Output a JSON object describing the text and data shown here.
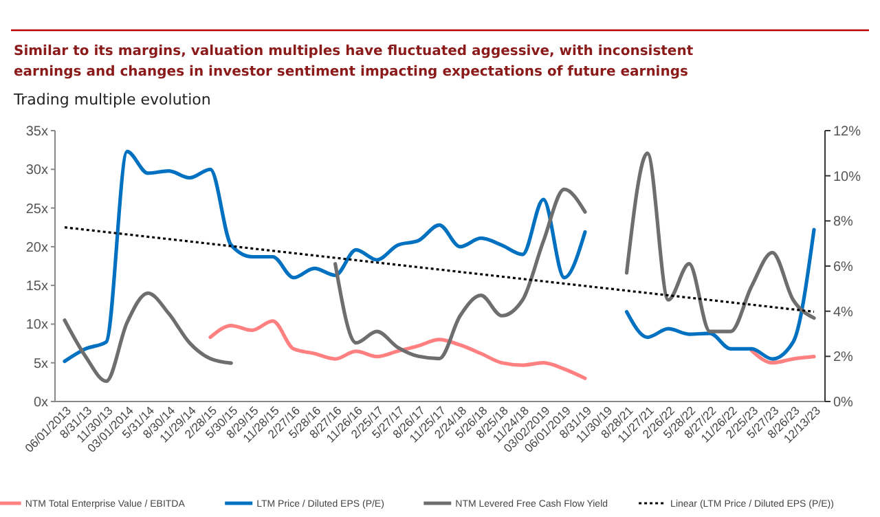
{
  "chart_data": {
    "type": "line",
    "title": "Similar to its margins, valuation multiples have fluctuated aggessive, with inconsistent earnings and changes in investor sentiment impacting expectations of future earnings",
    "subtitle": "Trading multiple evolution",
    "categories": [
      "06/01/2013",
      "8/31/13",
      "11/30/13",
      "03/01/2014",
      "5/31/14",
      "8/30/14",
      "11/29/14",
      "2/28/15",
      "5/30/15",
      "8/29/15",
      "11/28/15",
      "2/27/16",
      "5/28/16",
      "8/27/16",
      "11/26/16",
      "2/25/17",
      "5/27/17",
      "8/26/17",
      "11/25/17",
      "2/24/18",
      "5/26/18",
      "8/25/18",
      "11/24/18",
      "03/02/2019",
      "06/01/2019",
      "8/31/19",
      "11/30/19",
      "8/28/21",
      "11/27/21",
      "2/26/22",
      "5/28/22",
      "8/27/22",
      "11/26/22",
      "2/25/23",
      "5/27/23",
      "8/26/23",
      "12/13/23"
    ],
    "series": [
      {
        "name": "NTM Total Enterprise Value / EBITDA",
        "color": "#ff8080",
        "values": [
          null,
          null,
          null,
          null,
          null,
          null,
          null,
          8.3,
          9.8,
          9.2,
          10.4,
          6.8,
          6.2,
          5.5,
          6.5,
          5.8,
          6.5,
          7.2,
          8.0,
          7.3,
          6.2,
          5.0,
          4.7,
          5.0,
          4.2,
          3.0,
          null,
          null,
          null,
          null,
          null,
          null,
          null,
          6.6,
          5.0,
          5.5,
          5.8
        ]
      },
      {
        "name": "LTM Price / Diluted EPS (P/E)",
        "color": "#0070c0",
        "values": [
          5.2,
          6.8,
          7.7,
          32.3,
          29.5,
          29.8,
          28.9,
          30,
          20.2,
          18.7,
          18.7,
          16,
          17.2,
          16.3,
          19.6,
          18.3,
          20.2,
          20.8,
          22.8,
          20,
          21.1,
          20.2,
          19,
          26.1,
          16,
          21.9,
          null,
          11.6,
          8.3,
          9.4,
          8.7,
          8.8,
          6.8,
          6.8,
          5.5,
          7.7,
          22.2
        ]
      },
      {
        "name": "NTM Levered Free Cash Flow Yield",
        "color": "#6e6e6e",
        "axis": "y2",
        "values": [
          3.6,
          2.0,
          0.9,
          3.5,
          4.8,
          3.9,
          2.6,
          1.9,
          1.7,
          null,
          null,
          null,
          null,
          6.1,
          2.6,
          3.1,
          2.4,
          2.0,
          1.9,
          3.8,
          4.7,
          3.8,
          4.5,
          7.1,
          9.4,
          8.4,
          null,
          5.7,
          11.0,
          4.5,
          6.1,
          3.1,
          3.1,
          5.1,
          6.6,
          4.5,
          3.7
        ]
      },
      {
        "name": "Linear (LTM Price / Diluted EPS (P/E))",
        "color": "#000000",
        "line_style": "dotted",
        "x": [
          "06/01/2013",
          "12/13/23"
        ],
        "values": [
          22.5,
          11.6
        ]
      }
    ],
    "ylim": [
      0,
      35
    ],
    "yticks": [
      {
        "value": 0,
        "label": "0x"
      },
      {
        "value": 5,
        "label": "5x"
      },
      {
        "value": 10,
        "label": "10x"
      },
      {
        "value": 15,
        "label": "15x"
      },
      {
        "value": 20,
        "label": "20x"
      },
      {
        "value": 25,
        "label": "25x"
      },
      {
        "value": 30,
        "label": "30x"
      },
      {
        "value": 35,
        "label": "35x"
      }
    ],
    "y2lim": [
      0,
      12
    ],
    "y2ticks": [
      {
        "value": 0,
        "label": "0%"
      },
      {
        "value": 2,
        "label": "2%"
      },
      {
        "value": 4,
        "label": "4%"
      },
      {
        "value": 6,
        "label": "6%"
      },
      {
        "value": 8,
        "label": "8%"
      },
      {
        "value": 10,
        "label": "10%"
      },
      {
        "value": 12,
        "label": "12%"
      }
    ],
    "grid": false,
    "legend": "bottom",
    "marker": "none",
    "line_style": "solid"
  }
}
